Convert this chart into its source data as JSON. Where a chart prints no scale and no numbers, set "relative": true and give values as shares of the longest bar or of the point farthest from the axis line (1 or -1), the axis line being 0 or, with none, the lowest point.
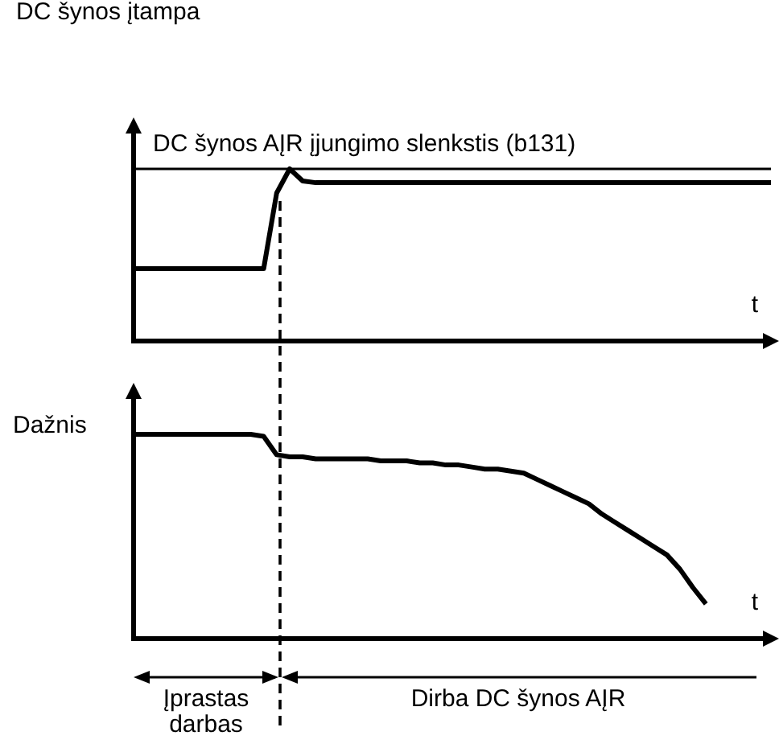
{
  "chart_data": [
    {
      "type": "line",
      "relative": true,
      "ylabel": "DC šynos įtampa",
      "xlabel": "t",
      "categories": [
        null,
        null,
        null,
        null,
        null,
        null,
        null,
        null,
        null,
        null,
        null,
        null,
        null,
        null,
        null,
        null,
        null,
        null,
        null,
        null,
        null,
        null,
        null,
        null,
        null,
        null,
        null,
        null,
        null,
        null,
        null,
        null,
        null,
        null,
        null,
        null,
        null,
        null,
        null,
        null,
        null,
        null,
        null,
        null,
        null,
        null,
        null,
        null,
        null,
        null
      ],
      "series": [
        {
          "color": "#000000",
          "values": [
            0.42,
            0.42,
            0.42,
            0.42,
            0.42,
            0.42,
            0.42,
            0.42,
            0.42,
            0.42,
            0.42,
            0.86,
            1,
            0.93,
            0.92,
            0.92,
            0.92,
            0.92,
            0.92,
            0.92,
            0.92,
            0.92,
            0.92,
            0.92,
            0.92,
            0.92,
            0.92,
            0.92,
            0.92,
            0.92,
            0.92,
            0.92,
            0.92,
            0.92,
            0.92,
            0.92,
            0.92,
            0.92,
            0.92,
            0.92,
            0.92,
            0.92,
            0.92,
            0.92,
            0.92,
            0.92,
            0.92,
            0.92,
            0.92,
            0.92
          ]
        }
      ],
      "ref_lines": [
        {
          "axis": "y",
          "value": 1,
          "label": "DC šynos AĮR įjungimo slenkstis (b131)",
          "color": "#000000"
        }
      ]
    },
    {
      "type": "line",
      "relative": true,
      "ylabel": "Dažnis",
      "xlabel": "t",
      "categories": [
        null,
        null,
        null,
        null,
        null,
        null,
        null,
        null,
        null,
        null,
        null,
        null,
        null,
        null,
        null,
        null,
        null,
        null,
        null,
        null,
        null,
        null,
        null,
        null,
        null,
        null,
        null,
        null,
        null,
        null,
        null,
        null,
        null,
        null,
        null,
        null,
        null,
        null,
        null,
        null,
        null,
        null,
        null,
        null,
        null,
        null,
        null,
        null,
        null,
        null
      ],
      "series": [
        {
          "color": "#000000",
          "values": [
            1,
            1,
            1,
            1,
            1,
            1,
            1,
            1,
            1,
            1,
            0.99,
            0.9,
            0.89,
            0.89,
            0.88,
            0.88,
            0.88,
            0.88,
            0.88,
            0.87,
            0.87,
            0.87,
            0.86,
            0.86,
            0.85,
            0.85,
            0.84,
            0.83,
            0.83,
            0.82,
            0.81,
            0.78,
            0.75,
            0.72,
            0.69,
            0.66,
            0.61,
            0.57,
            0.53,
            0.49,
            0.45,
            0.41,
            0.34,
            0.25,
            0.17,
            null,
            null,
            null,
            null,
            null
          ]
        }
      ],
      "annotations": [
        "Įprastas darbas",
        "Dirba DC šynos AĮR"
      ]
    }
  ]
}
